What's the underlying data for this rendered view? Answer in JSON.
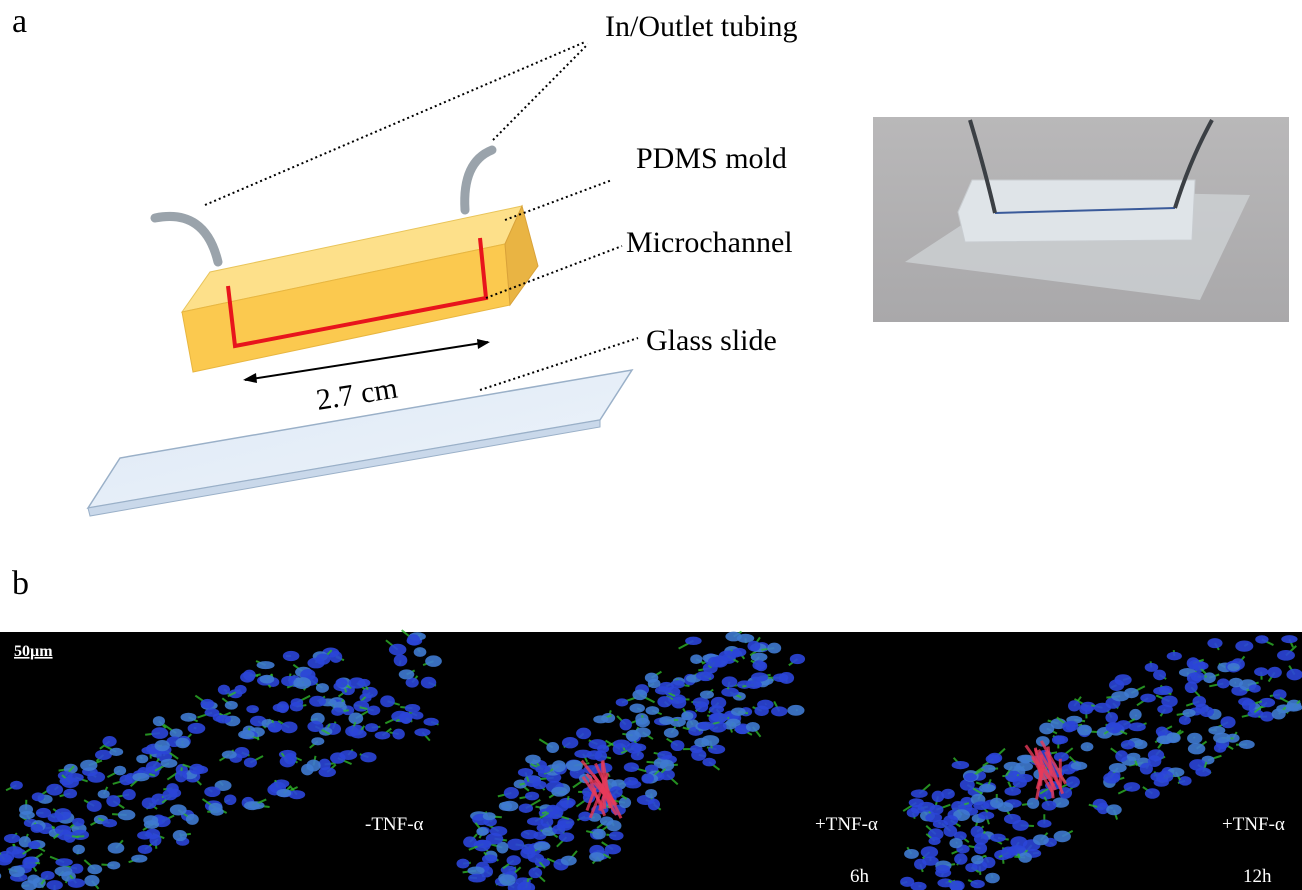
{
  "panel_a": {
    "label": "a",
    "annotations": {
      "tubing": "In/Outlet tubing",
      "mold": "PDMS mold",
      "channel": "Microchannel",
      "slide": "Glass slide",
      "length": "2.7 cm"
    }
  },
  "panel_b": {
    "label": "b",
    "scale_bar": "50µm",
    "conditions": [
      {
        "label": "-TNF-α"
      },
      {
        "label": "+TNF-α",
        "time": "6h"
      },
      {
        "label": "+TNF-α",
        "time": "12h"
      }
    ]
  }
}
